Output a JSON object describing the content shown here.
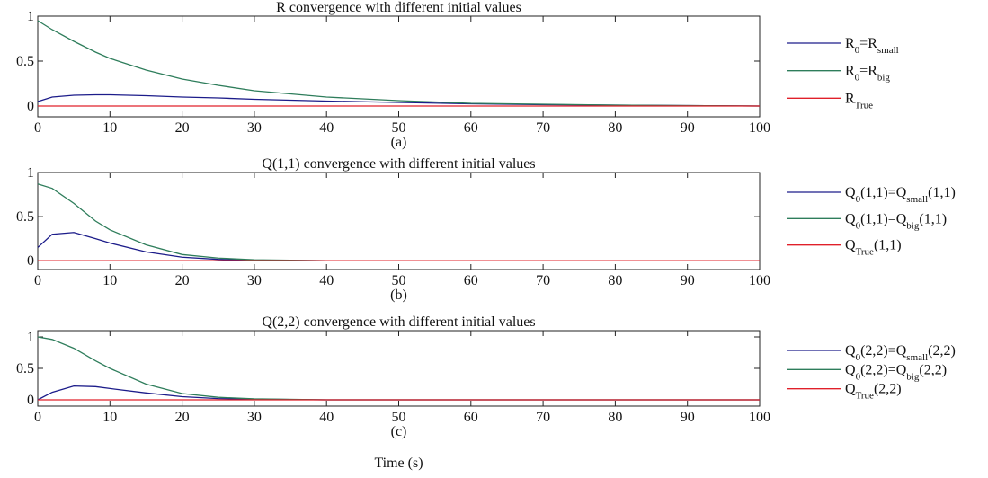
{
  "chart_data": [
    {
      "type": "line",
      "title": "R convergence with different initial values",
      "caption": "(a)",
      "x": [
        0,
        2,
        5,
        8,
        10,
        15,
        20,
        25,
        30,
        40,
        50,
        60,
        70,
        80,
        90,
        100
      ],
      "xlim": [
        0,
        100
      ],
      "xticks": [
        0,
        10,
        20,
        30,
        40,
        50,
        60,
        70,
        80,
        90,
        100
      ],
      "ylim": [
        -0.12,
        1
      ],
      "yticks": [
        0,
        0.5,
        1
      ],
      "series": [
        {
          "name": [
            {
              "text": "R"
            },
            {
              "text": "0",
              "sub": true
            },
            {
              "text": "=R"
            },
            {
              "text": "small",
              "sub": true
            }
          ],
          "color": "#1c1c8a",
          "values": [
            0.05,
            0.1,
            0.12,
            0.125,
            0.125,
            0.115,
            0.1,
            0.09,
            0.075,
            0.055,
            0.04,
            0.025,
            0.015,
            0.01,
            0.005,
            0
          ]
        },
        {
          "name": [
            {
              "text": "R"
            },
            {
              "text": "0",
              "sub": true
            },
            {
              "text": "=R"
            },
            {
              "text": "big",
              "sub": true
            }
          ],
          "color": "#2e7d5b",
          "values": [
            0.95,
            0.85,
            0.72,
            0.6,
            0.53,
            0.4,
            0.3,
            0.23,
            0.17,
            0.1,
            0.06,
            0.03,
            0.02,
            0.01,
            0.005,
            0
          ]
        },
        {
          "name": [
            {
              "text": "R"
            },
            {
              "text": "True",
              "sub": true
            }
          ],
          "color": "#e0202a",
          "values": [
            0,
            0,
            0,
            0,
            0,
            0,
            0,
            0,
            0,
            0,
            0,
            0,
            0,
            0,
            0,
            0
          ]
        }
      ]
    },
    {
      "type": "line",
      "title": "Q(1,1) convergence with different initial values",
      "caption": "(b)",
      "x": [
        0,
        2,
        5,
        8,
        10,
        15,
        20,
        25,
        30,
        40,
        50,
        60,
        70,
        80,
        90,
        100
      ],
      "xlim": [
        0,
        100
      ],
      "xticks": [
        0,
        10,
        20,
        30,
        40,
        50,
        60,
        70,
        80,
        90,
        100
      ],
      "ylim": [
        -0.1,
        1
      ],
      "yticks": [
        0,
        0.5,
        1
      ],
      "series": [
        {
          "name": [
            {
              "text": "Q"
            },
            {
              "text": "0",
              "sub": true
            },
            {
              "text": "(1,1)=Q"
            },
            {
              "text": "small",
              "sub": true
            },
            {
              "text": "(1,1)"
            }
          ],
          "color": "#1c1c8a",
          "values": [
            0.15,
            0.3,
            0.32,
            0.25,
            0.2,
            0.1,
            0.04,
            0.015,
            0.005,
            0,
            0,
            0,
            0,
            0,
            0,
            0
          ]
        },
        {
          "name": [
            {
              "text": "Q"
            },
            {
              "text": "0",
              "sub": true
            },
            {
              "text": "(1,1)=Q"
            },
            {
              "text": "big",
              "sub": true
            },
            {
              "text": "(1,1)"
            }
          ],
          "color": "#2e7d5b",
          "values": [
            0.87,
            0.82,
            0.65,
            0.45,
            0.35,
            0.18,
            0.07,
            0.03,
            0.01,
            0,
            0,
            0,
            0,
            0,
            0,
            0
          ]
        },
        {
          "name": [
            {
              "text": "Q"
            },
            {
              "text": "True",
              "sub": true
            },
            {
              "text": "(1,1)"
            }
          ],
          "color": "#e0202a",
          "values": [
            0,
            0,
            0,
            0,
            0,
            0,
            0,
            0,
            0,
            0,
            0,
            0,
            0,
            0,
            0,
            0
          ]
        }
      ]
    },
    {
      "type": "line",
      "title": "Q(2,2) convergence with different initial values",
      "caption": "(c)",
      "xlabel": "Time (s)",
      "x": [
        0,
        2,
        5,
        8,
        10,
        15,
        20,
        25,
        30,
        40,
        50,
        60,
        70,
        80,
        90,
        100
      ],
      "xlim": [
        0,
        100
      ],
      "xticks": [
        0,
        10,
        20,
        30,
        40,
        50,
        60,
        70,
        80,
        90,
        100
      ],
      "ylim": [
        -0.1,
        1.1
      ],
      "yticks": [
        0,
        0.5,
        1
      ],
      "series": [
        {
          "name": [
            {
              "text": "Q"
            },
            {
              "text": "0",
              "sub": true
            },
            {
              "text": "(2,2)=Q"
            },
            {
              "text": "small",
              "sub": true
            },
            {
              "text": "(2,2)"
            }
          ],
          "color": "#1c1c8a",
          "values": [
            0,
            0.12,
            0.22,
            0.21,
            0.18,
            0.11,
            0.05,
            0.02,
            0.01,
            0,
            0,
            0,
            0,
            0,
            0,
            0
          ]
        },
        {
          "name": [
            {
              "text": "Q"
            },
            {
              "text": "0",
              "sub": true
            },
            {
              "text": "(2,2)=Q"
            },
            {
              "text": "big",
              "sub": true
            },
            {
              "text": "(2,2)"
            }
          ],
          "color": "#2e7d5b",
          "values": [
            1.0,
            0.96,
            0.82,
            0.62,
            0.5,
            0.25,
            0.1,
            0.04,
            0.015,
            0,
            0,
            0,
            0,
            0,
            0,
            0
          ]
        },
        {
          "name": [
            {
              "text": "Q"
            },
            {
              "text": "True",
              "sub": true
            },
            {
              "text": "(2,2)"
            }
          ],
          "color": "#e0202a",
          "values": [
            0,
            0,
            0,
            0,
            0,
            0,
            0,
            0,
            0,
            0,
            0,
            0,
            0,
            0,
            0,
            0
          ]
        }
      ]
    }
  ]
}
